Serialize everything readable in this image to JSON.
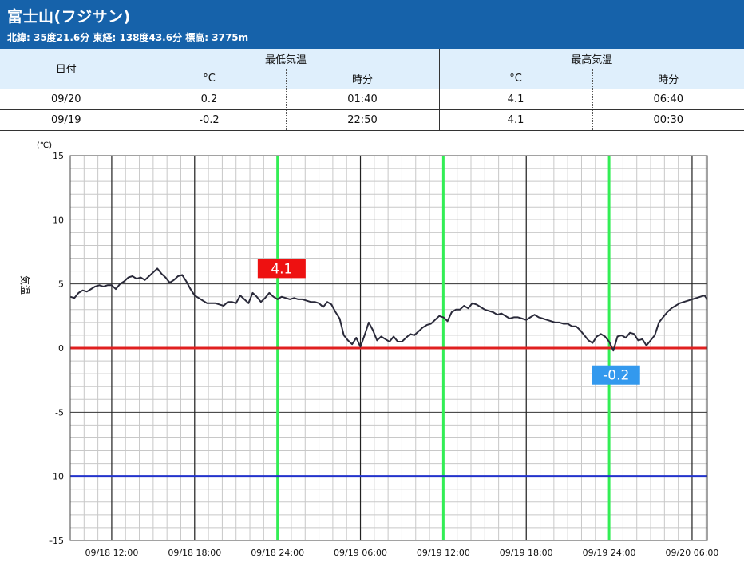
{
  "station": {
    "title": "富士山(フジサン)",
    "subtitle": "北緯: 35度21.6分 東経: 138度43.6分 標高: 3775m"
  },
  "table": {
    "date_header": "日付",
    "min_header": "最低気温",
    "max_header": "最高気温",
    "unit_c": "°C",
    "unit_time": "時分",
    "rows": [
      {
        "date": "09/20",
        "min_value": "0.2",
        "min_time": "01:40",
        "max_value": "4.1",
        "max_time": "06:40"
      },
      {
        "date": "09/19",
        "min_value": "-0.2",
        "min_time": "22:50",
        "max_value": "4.1",
        "max_time": "00:30"
      }
    ]
  },
  "chart_data": {
    "type": "line",
    "y_unit_label": "(℃)",
    "ylabel": "気温",
    "ylim": [
      -15,
      15
    ],
    "yticks": [
      "15",
      "10",
      "5",
      "0",
      "-5",
      "-10",
      "-15"
    ],
    "x_tick_labels": [
      "09/18 12:00",
      "09/18 18:00",
      "09/18 24:00",
      "09/19 06:00",
      "09/19 12:00",
      "09/19 18:00",
      "09/19 24:00",
      "09/20 06:00"
    ],
    "x_tick_hours": [
      12,
      18,
      24,
      30,
      36,
      42,
      48,
      54
    ],
    "x_hours_range": [
      9,
      55.1
    ],
    "day_boundary_hours": [
      24,
      36,
      48
    ],
    "reference_lines": [
      {
        "value": 0,
        "color": "#e02020"
      },
      {
        "value": -10,
        "color": "#2233cc"
      }
    ],
    "annotations": [
      {
        "label": "4.1",
        "x_hour": 24.3,
        "y_value": 6.2,
        "bg": "#ee1111"
      },
      {
        "label": "-0.2",
        "x_hour": 48.5,
        "y_value": -2.1,
        "bg": "#3399ee"
      }
    ],
    "series": [
      {
        "color": "#2a2a3a",
        "x": [
          9.0,
          9.3,
          9.6,
          9.9,
          10.2,
          10.5,
          10.8,
          11.1,
          11.4,
          11.7,
          12.0,
          12.3,
          12.6,
          12.9,
          13.2,
          13.5,
          13.8,
          14.1,
          14.4,
          14.7,
          15.0,
          15.3,
          15.6,
          15.9,
          16.2,
          16.5,
          16.8,
          17.1,
          17.4,
          17.7,
          18.0,
          18.3,
          18.6,
          18.9,
          19.2,
          19.5,
          19.8,
          20.1,
          20.4,
          20.7,
          21.0,
          21.3,
          21.6,
          21.9,
          22.2,
          22.5,
          22.8,
          23.1,
          23.4,
          23.7,
          24.0,
          24.3,
          24.6,
          24.9,
          25.2,
          25.5,
          25.8,
          26.1,
          26.4,
          26.7,
          27.0,
          27.3,
          27.6,
          27.9,
          28.2,
          28.5,
          28.8,
          29.1,
          29.4,
          29.7,
          30.0,
          30.3,
          30.6,
          30.9,
          31.2,
          31.5,
          31.8,
          32.1,
          32.4,
          32.7,
          33.0,
          33.3,
          33.6,
          33.9,
          34.2,
          34.5,
          34.8,
          35.1,
          35.4,
          35.7,
          36.0,
          36.3,
          36.6,
          36.9,
          37.2,
          37.5,
          37.8,
          38.1,
          38.4,
          38.7,
          39.0,
          39.3,
          39.6,
          39.9,
          40.2,
          40.5,
          40.8,
          41.1,
          41.4,
          41.7,
          42.0,
          42.3,
          42.6,
          42.9,
          43.2,
          43.5,
          43.8,
          44.1,
          44.4,
          44.7,
          45.0,
          45.3,
          45.6,
          45.9,
          46.2,
          46.5,
          46.8,
          47.1,
          47.4,
          47.7,
          48.0,
          48.3,
          48.6,
          48.9,
          49.2,
          49.5,
          49.8,
          50.1,
          50.4,
          50.7,
          51.0,
          51.3,
          51.6,
          51.9,
          52.2,
          52.5,
          52.8,
          53.1,
          53.4,
          53.7,
          54.0,
          54.3,
          54.6,
          54.9,
          55.1
        ],
        "values": [
          4.0,
          3.9,
          4.3,
          4.5,
          4.4,
          4.6,
          4.8,
          4.9,
          4.8,
          4.9,
          4.9,
          4.6,
          5.0,
          5.2,
          5.5,
          5.6,
          5.4,
          5.5,
          5.3,
          5.6,
          5.9,
          6.2,
          5.8,
          5.5,
          5.1,
          5.3,
          5.6,
          5.7,
          5.2,
          4.6,
          4.1,
          3.9,
          3.7,
          3.5,
          3.5,
          3.5,
          3.4,
          3.3,
          3.6,
          3.6,
          3.5,
          4.1,
          3.8,
          3.5,
          4.3,
          4.0,
          3.6,
          3.9,
          4.3,
          4.0,
          3.8,
          4.0,
          3.9,
          3.8,
          3.9,
          3.8,
          3.8,
          3.7,
          3.6,
          3.6,
          3.5,
          3.2,
          3.6,
          3.4,
          2.8,
          2.3,
          1.0,
          0.6,
          0.3,
          0.8,
          0.1,
          1.0,
          2.0,
          1.4,
          0.6,
          0.9,
          0.7,
          0.5,
          0.9,
          0.5,
          0.5,
          0.8,
          1.1,
          1.0,
          1.3,
          1.6,
          1.8,
          1.9,
          2.2,
          2.5,
          2.4,
          2.1,
          2.8,
          3.0,
          3.0,
          3.3,
          3.1,
          3.5,
          3.4,
          3.2,
          3.0,
          2.9,
          2.8,
          2.6,
          2.7,
          2.5,
          2.3,
          2.4,
          2.4,
          2.3,
          2.2,
          2.4,
          2.6,
          2.4,
          2.3,
          2.2,
          2.1,
          2.0,
          2.0,
          1.9,
          1.9,
          1.7,
          1.7,
          1.4,
          1.0,
          0.6,
          0.4,
          0.9,
          1.1,
          0.9,
          0.5,
          -0.2,
          0.9,
          1.0,
          0.8,
          1.2,
          1.1,
          0.6,
          0.7,
          0.2,
          0.6,
          1.0,
          2.0,
          2.4,
          2.8,
          3.1,
          3.3,
          3.5,
          3.6,
          3.7,
          3.8,
          3.9,
          4.0,
          4.1,
          3.8
        ]
      }
    ]
  }
}
